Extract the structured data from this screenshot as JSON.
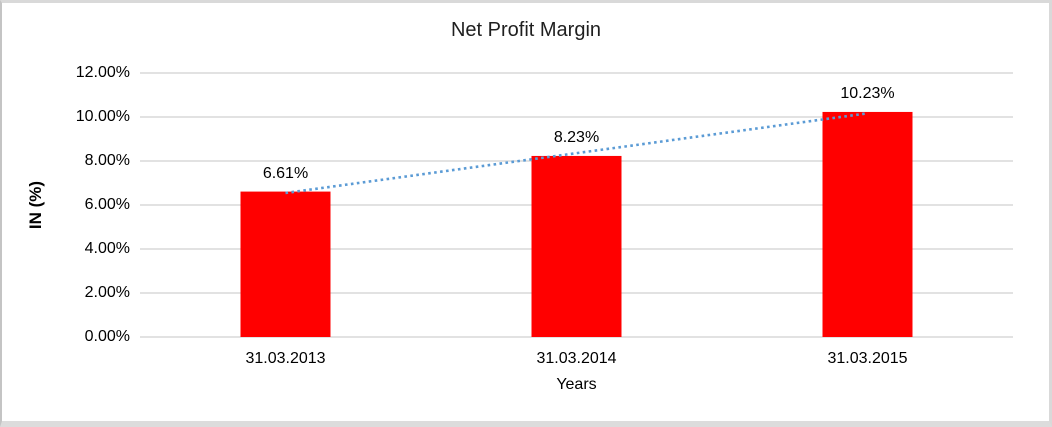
{
  "chart_data": {
    "type": "bar",
    "title": "Net Profit Margin",
    "xlabel": "Years",
    "ylabel": "IN (%)",
    "categories": [
      "31.03.2013",
      "31.03.2014",
      "31.03.2015"
    ],
    "values": [
      6.61,
      8.23,
      10.23
    ],
    "value_labels": [
      "6.61%",
      "8.23%",
      "10.23%"
    ],
    "ylim": [
      0,
      12
    ],
    "ytick_step": 2,
    "ytick_labels": [
      "0.00%",
      "2.00%",
      "4.00%",
      "6.00%",
      "8.00%",
      "10.00%",
      "12.00%"
    ],
    "grid": true,
    "legend": false,
    "bar_color": "#FF0000",
    "gridline_color": "#D9D9D9",
    "trendline": {
      "type": "linear",
      "style": "dotted",
      "color": "#5B9BD5"
    }
  }
}
